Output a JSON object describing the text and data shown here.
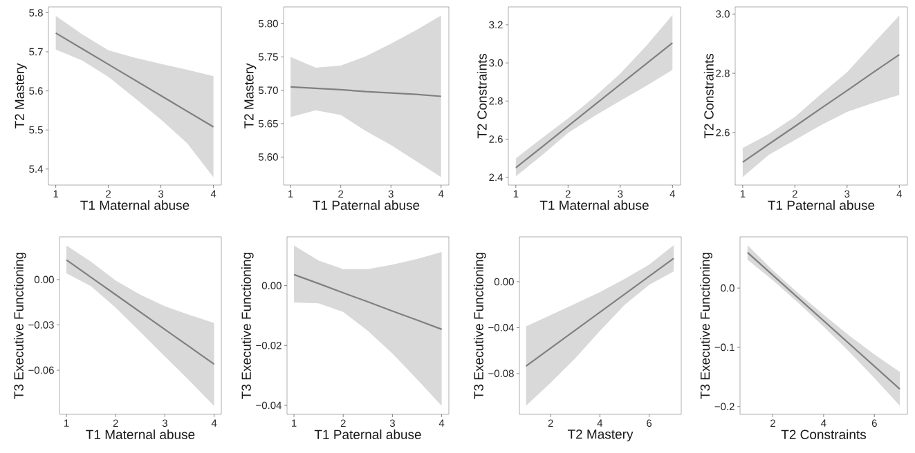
{
  "chart_data": [
    {
      "type": "line",
      "xlabel": "T1 Maternal abuse",
      "ylabel": "T2 Mastery",
      "xlim": [
        0.86,
        4.15
      ],
      "ylim": [
        5.359,
        5.815
      ],
      "xticks": [
        1,
        2,
        3,
        4
      ],
      "yticks": [
        5.4,
        5.5,
        5.6,
        5.7,
        5.8
      ],
      "series": [
        {
          "color": "#808080",
          "x": [
            1,
            1.5,
            2,
            2.5,
            3,
            3.5,
            4
          ],
          "values": [
            5.748,
            5.708,
            5.668,
            5.628,
            5.588,
            5.548,
            5.508
          ],
          "lower": [
            5.706,
            5.678,
            5.636,
            5.582,
            5.527,
            5.466,
            5.379
          ],
          "upper": [
            5.792,
            5.745,
            5.704,
            5.685,
            5.669,
            5.654,
            5.638
          ]
        }
      ]
    },
    {
      "type": "line",
      "xlabel": "T1 Paternal abuse",
      "ylabel": "T2 Mastery",
      "xlim": [
        0.86,
        4.155
      ],
      "ylim": [
        5.558,
        5.825
      ],
      "xticks": [
        1,
        2,
        3,
        4
      ],
      "yticks": [
        {
          "value": 5.6,
          "label": "5.60"
        },
        5.65,
        {
          "value": 5.7,
          "label": "5.70"
        },
        5.75,
        {
          "value": 5.8,
          "label": "5.80"
        }
      ],
      "series": [
        {
          "color": "#808080",
          "x": [
            1,
            1.5,
            2,
            2.5,
            3,
            3.5,
            4
          ],
          "values": [
            5.705,
            5.703,
            5.701,
            5.698,
            5.696,
            5.694,
            5.691
          ],
          "lower": [
            5.66,
            5.67,
            5.663,
            5.639,
            5.618,
            5.594,
            5.57
          ],
          "upper": [
            5.75,
            5.734,
            5.737,
            5.751,
            5.77,
            5.79,
            5.812
          ]
        }
      ]
    },
    {
      "type": "line",
      "xlabel": "T1 Maternal abuse",
      "ylabel": "T2 Constraints",
      "xlim": [
        0.856,
        4.155
      ],
      "ylim": [
        2.359,
        3.294
      ],
      "xticks": [
        1,
        2,
        3,
        4
      ],
      "yticks": [
        2.4,
        2.6,
        2.8,
        {
          "value": 3.0,
          "label": "3.0"
        },
        3.2
      ],
      "series": [
        {
          "color": "#808080",
          "x": [
            1,
            1.5,
            2,
            2.5,
            3,
            3.5,
            4
          ],
          "values": [
            2.45,
            2.559,
            2.668,
            2.778,
            2.887,
            2.996,
            3.105
          ],
          "lower": [
            2.405,
            2.515,
            2.633,
            2.72,
            2.801,
            2.88,
            2.963
          ],
          "upper": [
            2.499,
            2.605,
            2.709,
            2.82,
            2.944,
            3.09,
            3.251
          ]
        }
      ]
    },
    {
      "type": "line",
      "xlabel": "T1 Paternal abuse",
      "ylabel": "T2 Constraints",
      "xlim": [
        0.856,
        4.155
      ],
      "ylim": [
        2.423,
        3.024
      ],
      "xticks": [
        1,
        2,
        3,
        4
      ],
      "yticks": [
        2.6,
        2.8,
        {
          "value": 3.0,
          "label": "3.0"
        }
      ],
      "series": [
        {
          "color": "#808080",
          "x": [
            1,
            1.5,
            2,
            2.5,
            3,
            3.5,
            4
          ],
          "values": [
            2.5,
            2.561,
            2.621,
            2.682,
            2.742,
            2.803,
            2.863
          ],
          "lower": [
            2.45,
            2.525,
            2.575,
            2.625,
            2.67,
            2.7,
            2.727
          ],
          "upper": [
            2.548,
            2.595,
            2.653,
            2.73,
            2.804,
            2.9,
            2.995
          ]
        }
      ]
    },
    {
      "type": "line",
      "xlabel": "T1 Maternal abuse",
      "ylabel": "T3 Executive Functioning",
      "xlim": [
        0.859,
        4.146
      ],
      "ylim": [
        -0.0892,
        0.0283
      ],
      "xticks": [
        1,
        2,
        3,
        4
      ],
      "yticks": [
        {
          "value": -0.06,
          "label": "−0.06"
        },
        {
          "value": -0.03,
          "label": "−0.03"
        },
        {
          "value": 0,
          "label": "0.00"
        }
      ],
      "series": [
        {
          "color": "#808080",
          "x": [
            1,
            1.5,
            2,
            2.5,
            3,
            3.5,
            4
          ],
          "values": [
            0.013,
            0.0015,
            -0.01,
            -0.0215,
            -0.033,
            -0.0445,
            -0.056
          ],
          "lower": [
            0.0042,
            -0.0044,
            -0.0186,
            -0.0347,
            -0.0509,
            -0.067,
            -0.0837
          ],
          "upper": [
            0.0226,
            0.0118,
            -0.0006,
            -0.01,
            -0.0177,
            -0.0234,
            -0.0287
          ]
        }
      ]
    },
    {
      "type": "line",
      "xlabel": "T1 Paternal abuse",
      "ylabel": "T3 Executive Functioning",
      "xlim": [
        0.859,
        4.146
      ],
      "ylim": [
        -0.043,
        0.0163
      ],
      "xticks": [
        1,
        2,
        3,
        4
      ],
      "yticks": [
        {
          "value": -0.04,
          "label": "−0.04"
        },
        {
          "value": -0.02,
          "label": "−0.02"
        },
        {
          "value": 0,
          "label": "0.00"
        }
      ],
      "series": [
        {
          "color": "#808080",
          "x": [
            1,
            1.5,
            2,
            2.5,
            3,
            3.5,
            4
          ],
          "values": [
            0.0037,
            0.0007,
            -0.0024,
            -0.0054,
            -0.0085,
            -0.0115,
            -0.0146
          ],
          "lower": [
            -0.0056,
            -0.0059,
            -0.0088,
            -0.0151,
            -0.0227,
            -0.0313,
            -0.0402
          ],
          "upper": [
            0.0134,
            0.0084,
            0.0055,
            0.0055,
            0.007,
            0.0089,
            0.0112
          ]
        }
      ]
    },
    {
      "type": "line",
      "xlabel": "T2 Mastery",
      "ylabel": "T3 Executive Functioning",
      "xlim": [
        0.73,
        7.305
      ],
      "ylim": [
        -0.1156,
        0.0391
      ],
      "xticks": [
        2,
        4,
        6
      ],
      "yticks": [
        {
          "value": -0.08,
          "label": "−0.08"
        },
        {
          "value": -0.04,
          "label": "−0.04"
        },
        {
          "value": 0,
          "label": "0.00"
        }
      ],
      "series": [
        {
          "color": "#808080",
          "x": [
            1,
            2,
            3,
            4,
            5,
            6,
            7
          ],
          "values": [
            -0.0735,
            -0.0579,
            -0.0423,
            -0.0266,
            -0.011,
            0.0047,
            0.0203
          ],
          "lower": [
            -0.1081,
            -0.088,
            -0.0667,
            -0.0429,
            -0.0203,
            -0.0028,
            0.009
          ],
          "upper": [
            -0.0389,
            -0.0291,
            -0.0191,
            -0.009,
            0.0023,
            0.0148,
            0.0319
          ]
        }
      ]
    },
    {
      "type": "line",
      "xlabel": "T2 Constraints",
      "ylabel": "T3 Executive Functioning",
      "xlim": [
        0.705,
        7.3
      ],
      "ylim": [
        -0.2131,
        0.0864
      ],
      "xticks": [
        2,
        4,
        6
      ],
      "yticks": [
        {
          "value": -0.2,
          "label": "−0.2"
        },
        {
          "value": -0.1,
          "label": "−0.1"
        },
        {
          "value": 0,
          "label": "0.0"
        }
      ],
      "series": [
        {
          "color": "#808080",
          "x": [
            1,
            2,
            3,
            4,
            5,
            6,
            7
          ],
          "values": [
            0.06,
            0.0216,
            -0.0168,
            -0.0552,
            -0.0936,
            -0.132,
            -0.1704
          ],
          "lower": [
            0.048,
            0.013,
            -0.025,
            -0.065,
            -0.107,
            -0.152,
            -0.1985
          ],
          "upper": [
            0.0723,
            0.03,
            -0.0085,
            -0.045,
            -0.08,
            -0.112,
            -0.1413
          ]
        }
      ]
    }
  ]
}
